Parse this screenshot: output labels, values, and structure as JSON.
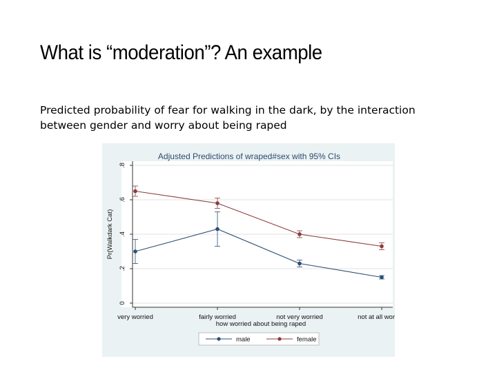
{
  "slide": {
    "title": "What is “moderation”? An example",
    "subtitle": "Predicted probability of fear for walking in the dark, by the interaction between gender and worry about being raped"
  },
  "chart_data": {
    "type": "line",
    "title": "Adjusted Predictions of wraped#sex with 95% CIs",
    "xlabel": "how worried about being raped",
    "ylabel": "Pr(Walkdark Cat)",
    "categories": [
      "very worried",
      "fairly worried",
      "not very worried",
      "not at all worried"
    ],
    "ylim": [
      0,
      0.8
    ],
    "yticks": [
      0,
      0.2,
      0.4,
      0.6,
      0.8
    ],
    "ytick_labels": [
      "0",
      ".2",
      ".4",
      ".6",
      ".8"
    ],
    "grid": true,
    "legend_position": "bottom",
    "series": [
      {
        "name": "male",
        "color": "#2b4f73",
        "values": [
          0.3,
          0.43,
          0.23,
          0.15
        ],
        "ci_low": [
          0.23,
          0.33,
          0.21,
          0.14
        ],
        "ci_high": [
          0.37,
          0.53,
          0.25,
          0.16
        ]
      },
      {
        "name": "female",
        "color": "#8c3b3b",
        "values": [
          0.65,
          0.58,
          0.4,
          0.33
        ],
        "ci_low": [
          0.62,
          0.55,
          0.38,
          0.31
        ],
        "ci_high": [
          0.68,
          0.61,
          0.42,
          0.35
        ]
      }
    ]
  }
}
